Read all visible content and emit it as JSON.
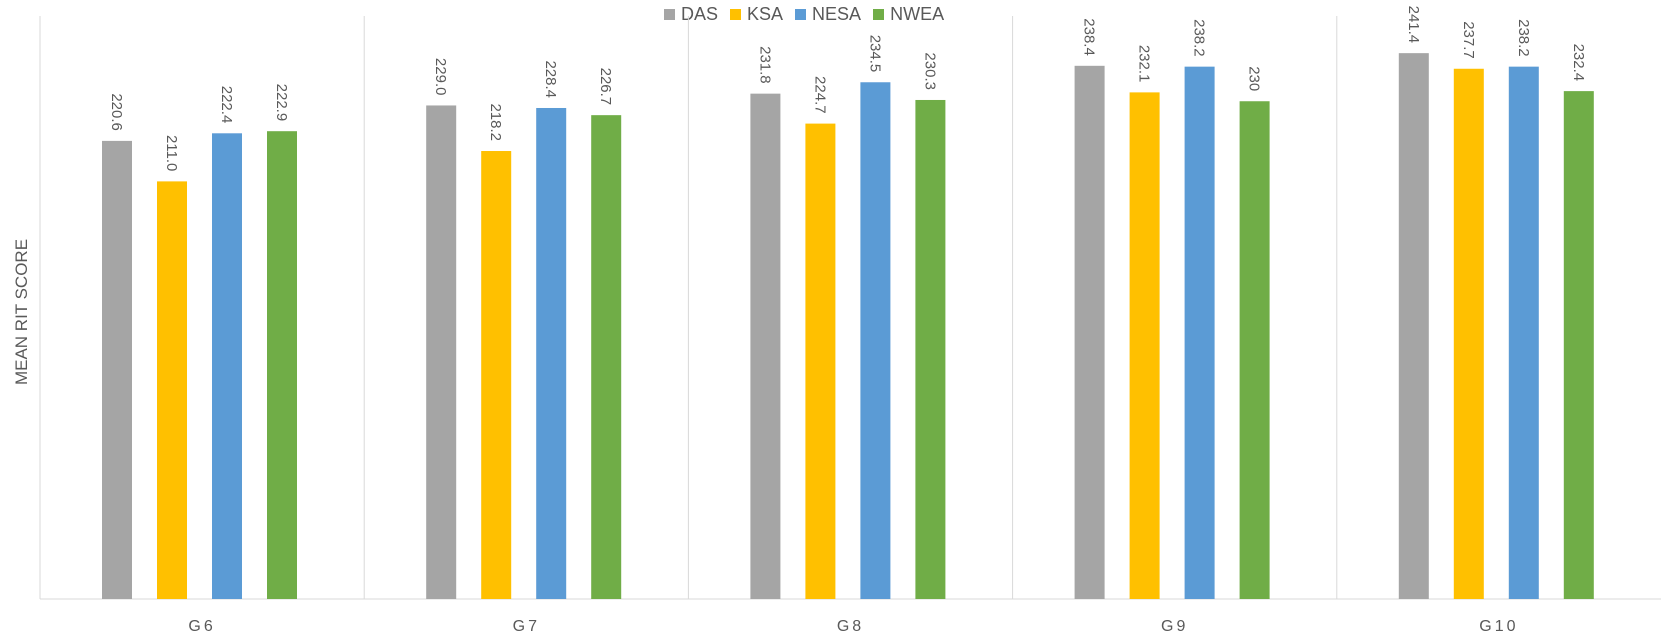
{
  "chart_data": {
    "type": "bar",
    "title": "",
    "xlabel": "",
    "ylabel": "MEAN RIT SCORE",
    "categories": [
      "G6",
      "G7",
      "G8",
      "G9",
      "G10"
    ],
    "series": [
      {
        "name": "DAS",
        "color": "#a5a5a5",
        "values": [
          220.6,
          229.0,
          231.8,
          238.4,
          241.4
        ],
        "labels": [
          "220.6",
          "229.0",
          "231.8",
          "238.4",
          "241.4"
        ]
      },
      {
        "name": "KSA",
        "color": "#ffc000",
        "values": [
          211.0,
          218.2,
          224.7,
          232.1,
          237.7
        ],
        "labels": [
          "211.0",
          "218.2",
          "224.7",
          "232.1",
          "237.7"
        ]
      },
      {
        "name": "NESA",
        "color": "#5b9bd5",
        "values": [
          222.4,
          228.4,
          234.5,
          238.2,
          238.2
        ],
        "labels": [
          "222.4",
          "228.4",
          "234.5",
          "238.2",
          "238.2"
        ]
      },
      {
        "name": "NWEA",
        "color": "#70ad47",
        "values": [
          222.9,
          226.7,
          230.3,
          230,
          232.4
        ],
        "labels": [
          "222.9",
          "226.7",
          "230.3",
          "230",
          "232.4"
        ]
      }
    ],
    "ylim": [
      112,
      254
    ],
    "grid": false,
    "legend_position": "top-center"
  }
}
